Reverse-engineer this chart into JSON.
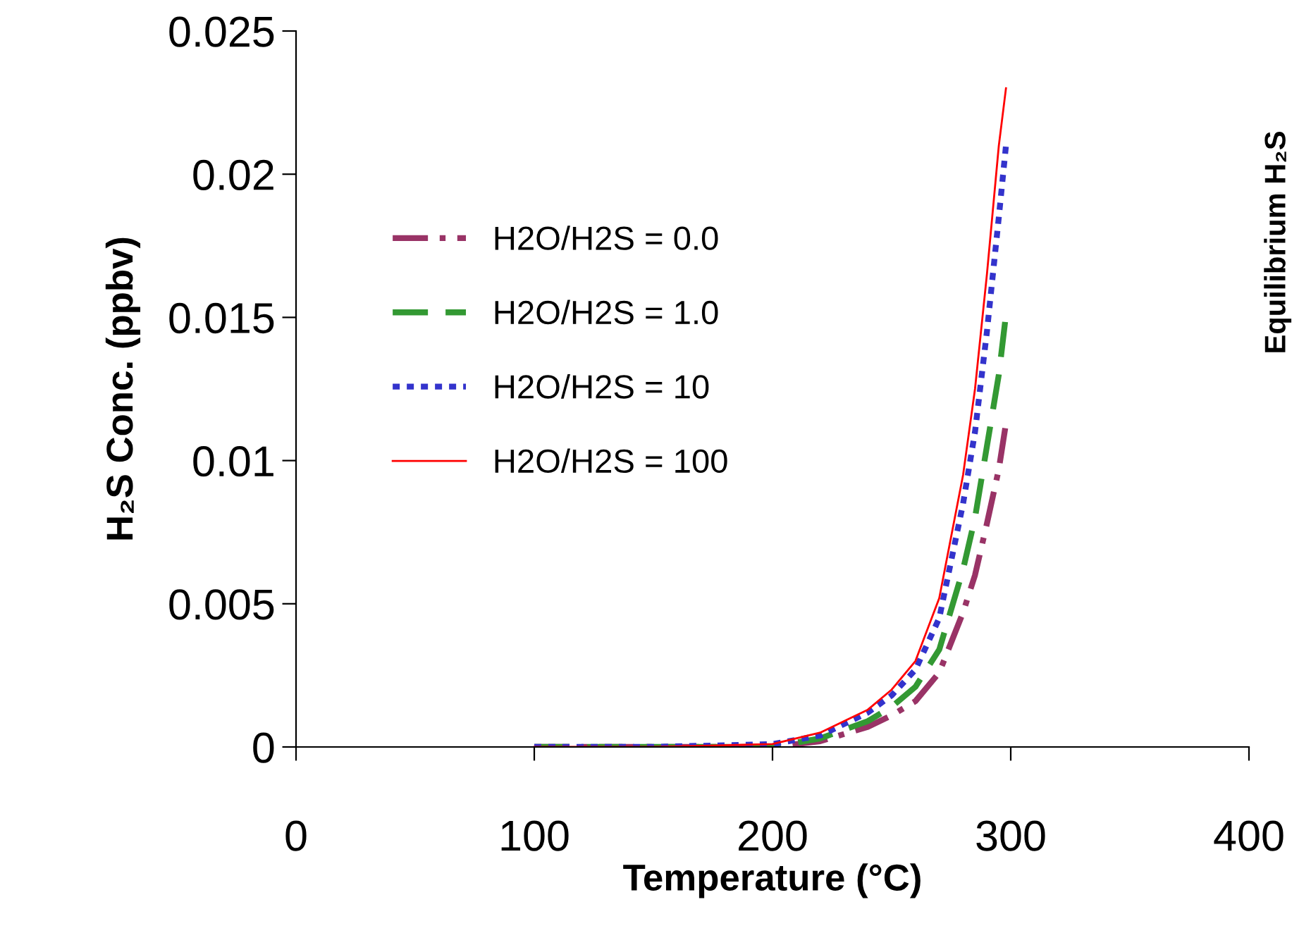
{
  "chart_data": {
    "type": "line",
    "xlabel": "Temperature (°C)",
    "ylabel": "H₂S Conc. (ppbv)",
    "annotations": [
      "Equilibrium H₂S"
    ],
    "xlim": [
      0,
      400
    ],
    "xticks": [
      0,
      100,
      200,
      300,
      400
    ],
    "ylim": [
      0,
      0.025
    ],
    "yticks": [
      0,
      0.005,
      0.01,
      0.015,
      0.02,
      0.025
    ],
    "grid": false,
    "legend": "top left",
    "marker": "none",
    "x": [
      100,
      150,
      200,
      220,
      240,
      250,
      260,
      270,
      280,
      285,
      290,
      295,
      298
    ],
    "series": [
      {
        "name": "H2O/H2S = 0.0",
        "color": "#993366",
        "line_style": "dashdot",
        "values": [
          0,
          0,
          0,
          0.0002,
          0.0007,
          0.0011,
          0.0016,
          0.0026,
          0.0047,
          0.006,
          0.0078,
          0.0097,
          0.0113
        ]
      },
      {
        "name": "H2O/H2S = 1.0",
        "color": "#339933",
        "line_style": "dashed",
        "values": [
          0,
          0,
          0,
          0.0003,
          0.0009,
          0.0014,
          0.0021,
          0.0034,
          0.0062,
          0.008,
          0.0105,
          0.013,
          0.0151
        ]
      },
      {
        "name": "H2O/H2S = 10",
        "color": "#3333cc",
        "line_style": "dotted",
        "values": [
          0,
          0,
          0.0001,
          0.0004,
          0.0012,
          0.0018,
          0.0027,
          0.0045,
          0.0085,
          0.011,
          0.0145,
          0.0185,
          0.021
        ]
      },
      {
        "name": "H2O/H2S = 100",
        "color": "#ff0000",
        "line_style": "solid",
        "values": [
          0,
          0,
          0.0001,
          0.0005,
          0.0013,
          0.002,
          0.003,
          0.0052,
          0.0095,
          0.0125,
          0.0165,
          0.021,
          0.023
        ]
      }
    ]
  }
}
